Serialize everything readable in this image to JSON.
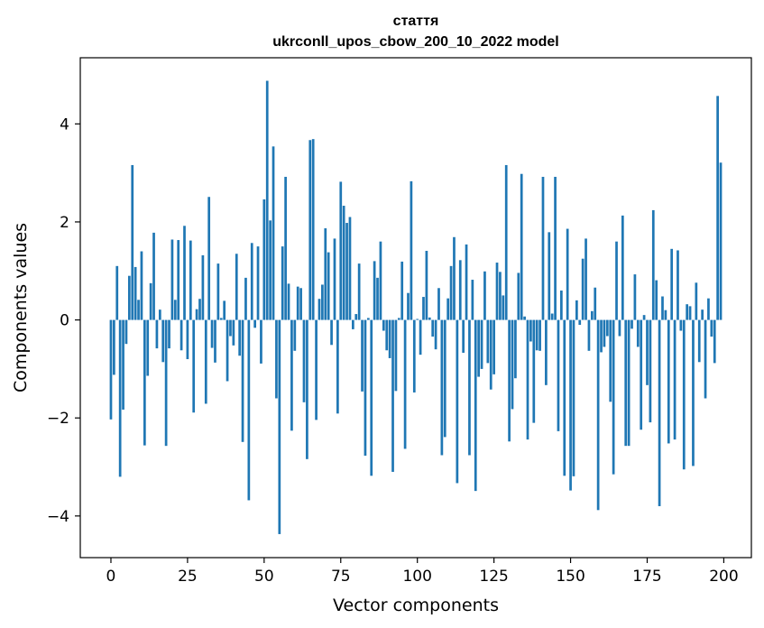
{
  "chart_data": {
    "type": "bar",
    "title": "стаття",
    "subtitle": "ukrconll_upos_cbow_200_10_2022 model",
    "xlabel": "Vector components",
    "ylabel": "Components values",
    "xlim": [
      -10,
      209
    ],
    "ylim": [
      -4.85,
      5.35
    ],
    "xticks": [
      0,
      25,
      50,
      75,
      100,
      125,
      150,
      175,
      200
    ],
    "yticks": [
      -4,
      -2,
      0,
      2,
      4
    ],
    "ytick_labels": [
      "−4",
      "−2",
      "0",
      "2",
      "4"
    ],
    "xtick_labels": [
      "0",
      "25",
      "50",
      "75",
      "100",
      "125",
      "150",
      "175",
      "200"
    ],
    "bar_color": "#1f77b4",
    "x": "0..199",
    "values": [
      -2.03,
      -1.12,
      1.1,
      -3.2,
      -1.83,
      -0.49,
      0.9,
      3.16,
      1.08,
      0.41,
      1.4,
      -2.56,
      -1.14,
      0.75,
      1.78,
      -0.58,
      0.21,
      -0.86,
      -2.57,
      -0.58,
      1.64,
      0.41,
      1.63,
      -0.62,
      1.92,
      -0.8,
      1.62,
      -1.89,
      0.22,
      0.43,
      1.32,
      -1.71,
      2.51,
      -0.57,
      -0.87,
      1.15,
      0.04,
      0.39,
      -1.25,
      -0.33,
      -0.52,
      1.35,
      -0.73,
      -2.49,
      0.86,
      -3.68,
      1.57,
      -0.16,
      1.5,
      -0.89,
      2.46,
      4.88,
      2.03,
      3.54,
      -1.6,
      -4.37,
      1.5,
      2.92,
      0.74,
      -2.26,
      -0.63,
      0.68,
      0.65,
      -1.68,
      -2.84,
      3.67,
      3.69,
      -2.04,
      0.43,
      0.72,
      1.87,
      1.38,
      -0.51,
      1.66,
      -1.91,
      2.82,
      2.33,
      1.98,
      2.1,
      -0.19,
      0.12,
      1.15,
      -1.46,
      -2.77,
      0.04,
      -3.18,
      1.2,
      0.86,
      1.6,
      -0.22,
      -0.62,
      -0.78,
      -3.1,
      -1.45,
      0.04,
      1.19,
      -2.63,
      0.55,
      2.83,
      -1.48,
      0.02,
      -0.71,
      0.47,
      1.41,
      0.05,
      -0.34,
      -0.6,
      0.65,
      -2.76,
      -2.39,
      0.44,
      1.1,
      1.69,
      -3.33,
      1.22,
      -0.67,
      1.54,
      -2.76,
      0.82,
      -3.49,
      -1.16,
      -1.0,
      0.99,
      -0.88,
      -1.42,
      -1.11,
      1.17,
      0.98,
      0.5,
      3.16,
      -2.48,
      -1.82,
      -1.19,
      0.96,
      2.98,
      0.07,
      -2.44,
      -0.44,
      -2.1,
      -0.62,
      -0.63,
      2.92,
      -1.33,
      1.79,
      0.13,
      2.92,
      -2.27,
      0.6,
      -3.18,
      1.86,
      -3.48,
      -3.19,
      0.4,
      -0.1,
      1.25,
      1.66,
      -0.63,
      0.18,
      0.66,
      -3.88,
      -0.66,
      -0.55,
      -0.33,
      -1.67,
      -3.15,
      1.6,
      -0.33,
      2.13,
      -2.57,
      -2.57,
      -0.18,
      0.93,
      -0.55,
      -2.24,
      0.1,
      -1.33,
      -2.09,
      2.24,
      0.81,
      -3.8,
      0.48,
      0.2,
      -2.52,
      1.45,
      -2.44,
      1.42,
      -0.22,
      -3.05,
      0.32,
      0.28,
      -2.98,
      0.76,
      -0.86,
      0.21,
      -1.6,
      0.44,
      -0.34,
      -0.88,
      4.57,
      3.21
    ]
  }
}
